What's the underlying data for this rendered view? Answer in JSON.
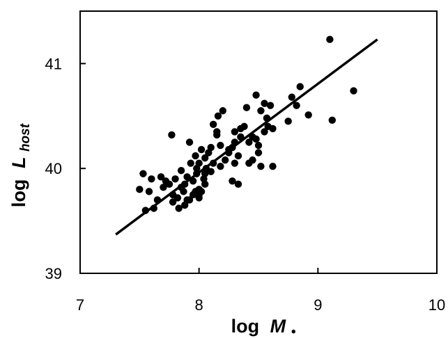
{
  "chart_data": {
    "type": "scatter",
    "title": "",
    "xlabel": {
      "main": "log",
      "symbol": "M",
      "subscript": "•"
    },
    "ylabel": {
      "main": "log",
      "symbol": "L",
      "subscript": "host"
    },
    "xlim": [
      7,
      10
    ],
    "ylim": [
      39,
      41.5
    ],
    "xticks": [
      7,
      8,
      9,
      10
    ],
    "yticks": [
      39,
      40,
      41
    ],
    "xtick_labels": [
      "7",
      "8",
      "9",
      "10"
    ],
    "ytick_labels": [
      "39",
      "40",
      "41"
    ],
    "grid": false,
    "legend": "none",
    "colors": {
      "points": "#000000",
      "line": "#000000",
      "frame": "#000000",
      "background": "#ffffff"
    },
    "fit_line": {
      "x": [
        7.3,
        9.5
      ],
      "y": [
        39.37,
        41.23
      ]
    },
    "points": {
      "x": [
        9.1,
        9.3,
        9.12,
        8.85,
        8.78,
        8.82,
        8.92,
        8.75,
        8.6,
        8.62,
        8.55,
        8.58,
        8.48,
        8.52,
        8.57,
        8.55,
        8.5,
        8.45,
        8.4,
        8.42,
        8.38,
        8.35,
        8.33,
        8.3,
        8.28,
        8.3,
        8.25,
        8.22,
        8.2,
        8.18,
        8.16,
        8.15,
        8.12,
        8.1,
        8.08,
        8.06,
        8.05,
        8.04,
        8.02,
        8.0,
        8.0,
        7.98,
        7.97,
        7.95,
        7.93,
        7.92,
        7.9,
        7.9,
        7.88,
        7.87,
        7.85,
        7.83,
        7.82,
        7.8,
        7.78,
        7.77,
        7.75,
        7.72,
        7.7,
        7.68,
        7.65,
        7.62,
        7.6,
        7.58,
        7.55,
        7.53,
        7.5,
        7.78,
        7.88,
        7.95,
        8.0,
        8.02,
        7.98,
        8.1,
        8.12,
        8.15,
        8.25,
        8.3,
        8.35,
        8.42,
        8.45,
        8.5,
        8.52,
        8.48,
        8.33,
        8.28,
        8.18,
        8.05,
        7.92,
        7.85,
        8.62,
        8.05,
        8.0,
        7.97
      ],
      "y": [
        41.23,
        40.74,
        40.46,
        40.78,
        40.68,
        40.6,
        40.51,
        40.45,
        40.6,
        40.38,
        40.62,
        40.4,
        40.7,
        40.55,
        40.48,
        40.35,
        40.22,
        40.3,
        40.58,
        40.25,
        40.4,
        40.3,
        40.12,
        40.35,
        40.2,
        40.05,
        40.15,
        40.08,
        40.55,
        40.22,
        40.5,
        40.35,
        40.05,
        40.2,
        40.15,
        40.0,
        40.1,
        39.9,
        40.18,
        40.05,
        39.8,
        39.95,
        40.12,
        39.88,
        40.05,
        40.25,
        39.7,
        39.92,
        39.85,
        39.78,
        39.98,
        39.62,
        39.72,
        39.9,
        39.68,
        40.32,
        39.85,
        39.88,
        39.82,
        39.92,
        39.7,
        39.62,
        39.9,
        39.78,
        39.6,
        39.95,
        39.8,
        39.75,
        39.65,
        39.75,
        39.72,
        39.78,
        40.0,
        39.97,
        40.42,
        40.32,
        40.18,
        40.25,
        40.38,
        40.05,
        40.08,
        40.15,
        40.02,
        40.28,
        39.85,
        39.88,
        40.02,
        39.95,
        39.7,
        39.82,
        40.02,
        39.85,
        39.75,
        39.78
      ]
    }
  }
}
